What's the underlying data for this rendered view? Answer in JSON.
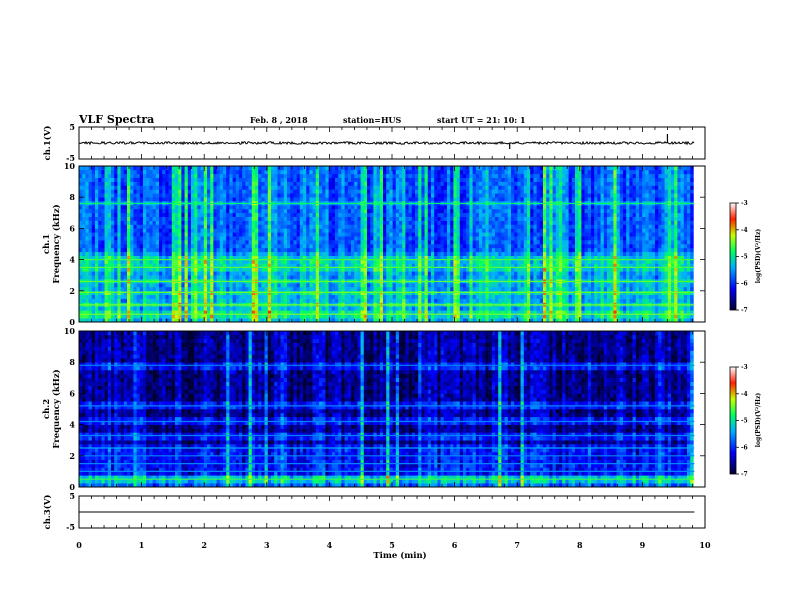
{
  "header": {
    "title": "VLF Spectra",
    "date": "Feb. 8 , 2018",
    "station": "station=HUS",
    "start_ut": "start UT = 21: 10: 1"
  },
  "chart_data": [
    {
      "type": "line",
      "panel": "ch1-waveform",
      "ylabel": "ch.1(V)",
      "ylim": [
        -5,
        5
      ],
      "yticks": [
        "5",
        "-5"
      ],
      "baseline_value": 0,
      "spike_times_min": [
        6.88,
        9.4
      ],
      "color": "#000000"
    },
    {
      "type": "heatmap",
      "panel": "ch1-spectrogram",
      "ylabel": "ch.1 Frequency (kHz)",
      "ylabel_ch": "ch.1",
      "ylabel_freq": "Frequency (kHz)",
      "ylim": [
        0,
        10
      ],
      "yticks": [
        "0",
        "2",
        "4",
        "6",
        "8",
        "10"
      ],
      "band_freqs_khz": [
        0.5,
        1.1,
        1.9,
        2.6,
        3.5,
        4.0,
        7.6
      ],
      "colorbar": {
        "label": "log(PSD)(V²/Hz)",
        "range": [
          -7,
          -3
        ],
        "ticks": [
          "-3",
          "-4",
          "-5",
          "-6",
          "-7"
        ]
      }
    },
    {
      "type": "heatmap",
      "panel": "ch2-spectrogram",
      "ylabel": "ch.2 Frequency (kHz)",
      "ylabel_ch": "ch.2",
      "ylabel_freq": "Frequency (kHz)",
      "ylim": [
        0,
        10
      ],
      "yticks": [
        "0",
        "2",
        "4",
        "6",
        "8",
        "10"
      ],
      "band_freqs_khz": [
        0.5,
        1.0,
        1.5,
        2.0,
        2.5,
        3.3,
        4.2,
        5.2,
        7.8
      ],
      "colorbar": {
        "label": "log(PSD)(V²/Hz)",
        "range": [
          -7,
          -3
        ],
        "ticks": [
          "-3",
          "-4",
          "-5",
          "-6",
          "-7"
        ]
      }
    },
    {
      "type": "line",
      "panel": "ch3-waveform",
      "ylabel": "ch.3(V)",
      "ylim": [
        -5,
        5
      ],
      "yticks": [
        "5",
        "-5"
      ],
      "baseline_value": 0,
      "color": "#000000"
    }
  ],
  "x_axis": {
    "label": "Time (min)",
    "range": [
      0,
      10
    ],
    "ticks": [
      "0",
      "1",
      "2",
      "3",
      "4",
      "5",
      "6",
      "7",
      "8",
      "9",
      "10"
    ],
    "data_end_min": 9.83
  },
  "colors": {
    "colormap": [
      "#000040",
      "#0000c8",
      "#2266ff",
      "#00d8ff",
      "#22ff88",
      "#ffff00",
      "#ff3300",
      "#ffffff"
    ]
  }
}
